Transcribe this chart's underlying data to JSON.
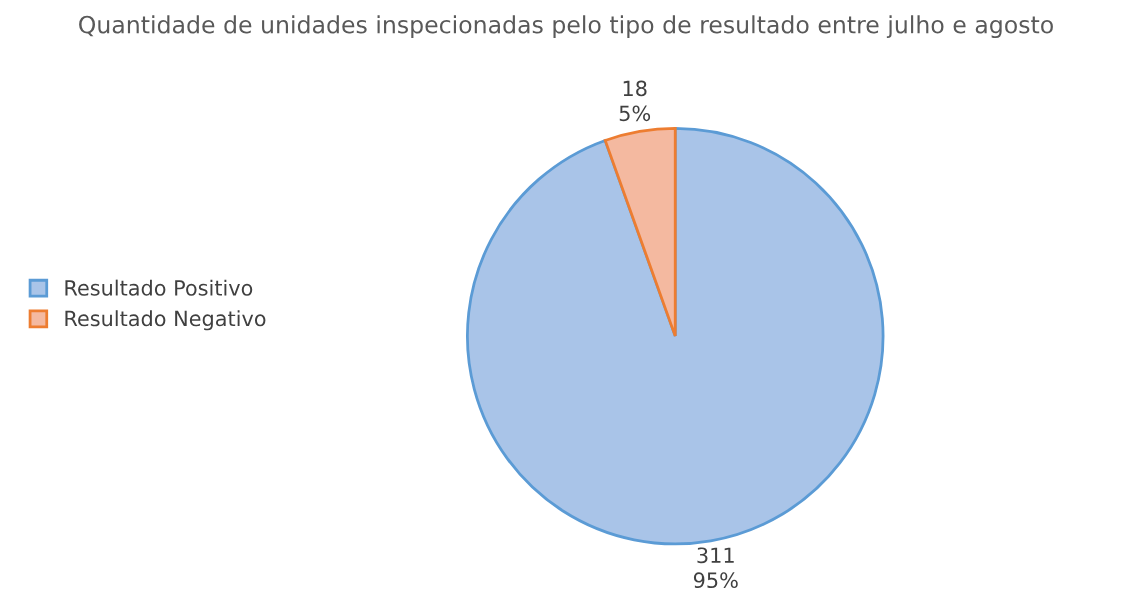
{
  "chart_data": {
    "type": "pie",
    "title": "Quantidade de unidades inspecionadas pelo tipo de resultado entre julho e agosto",
    "categories": [
      "Resultado Positivo",
      "Resultado Negativo"
    ],
    "values": [
      311,
      18
    ],
    "colors": [
      "#a9c4e8",
      "#f4b9a0"
    ],
    "value_labels": [
      "311\n95%",
      "18\n5%"
    ],
    "legend": "left"
  }
}
